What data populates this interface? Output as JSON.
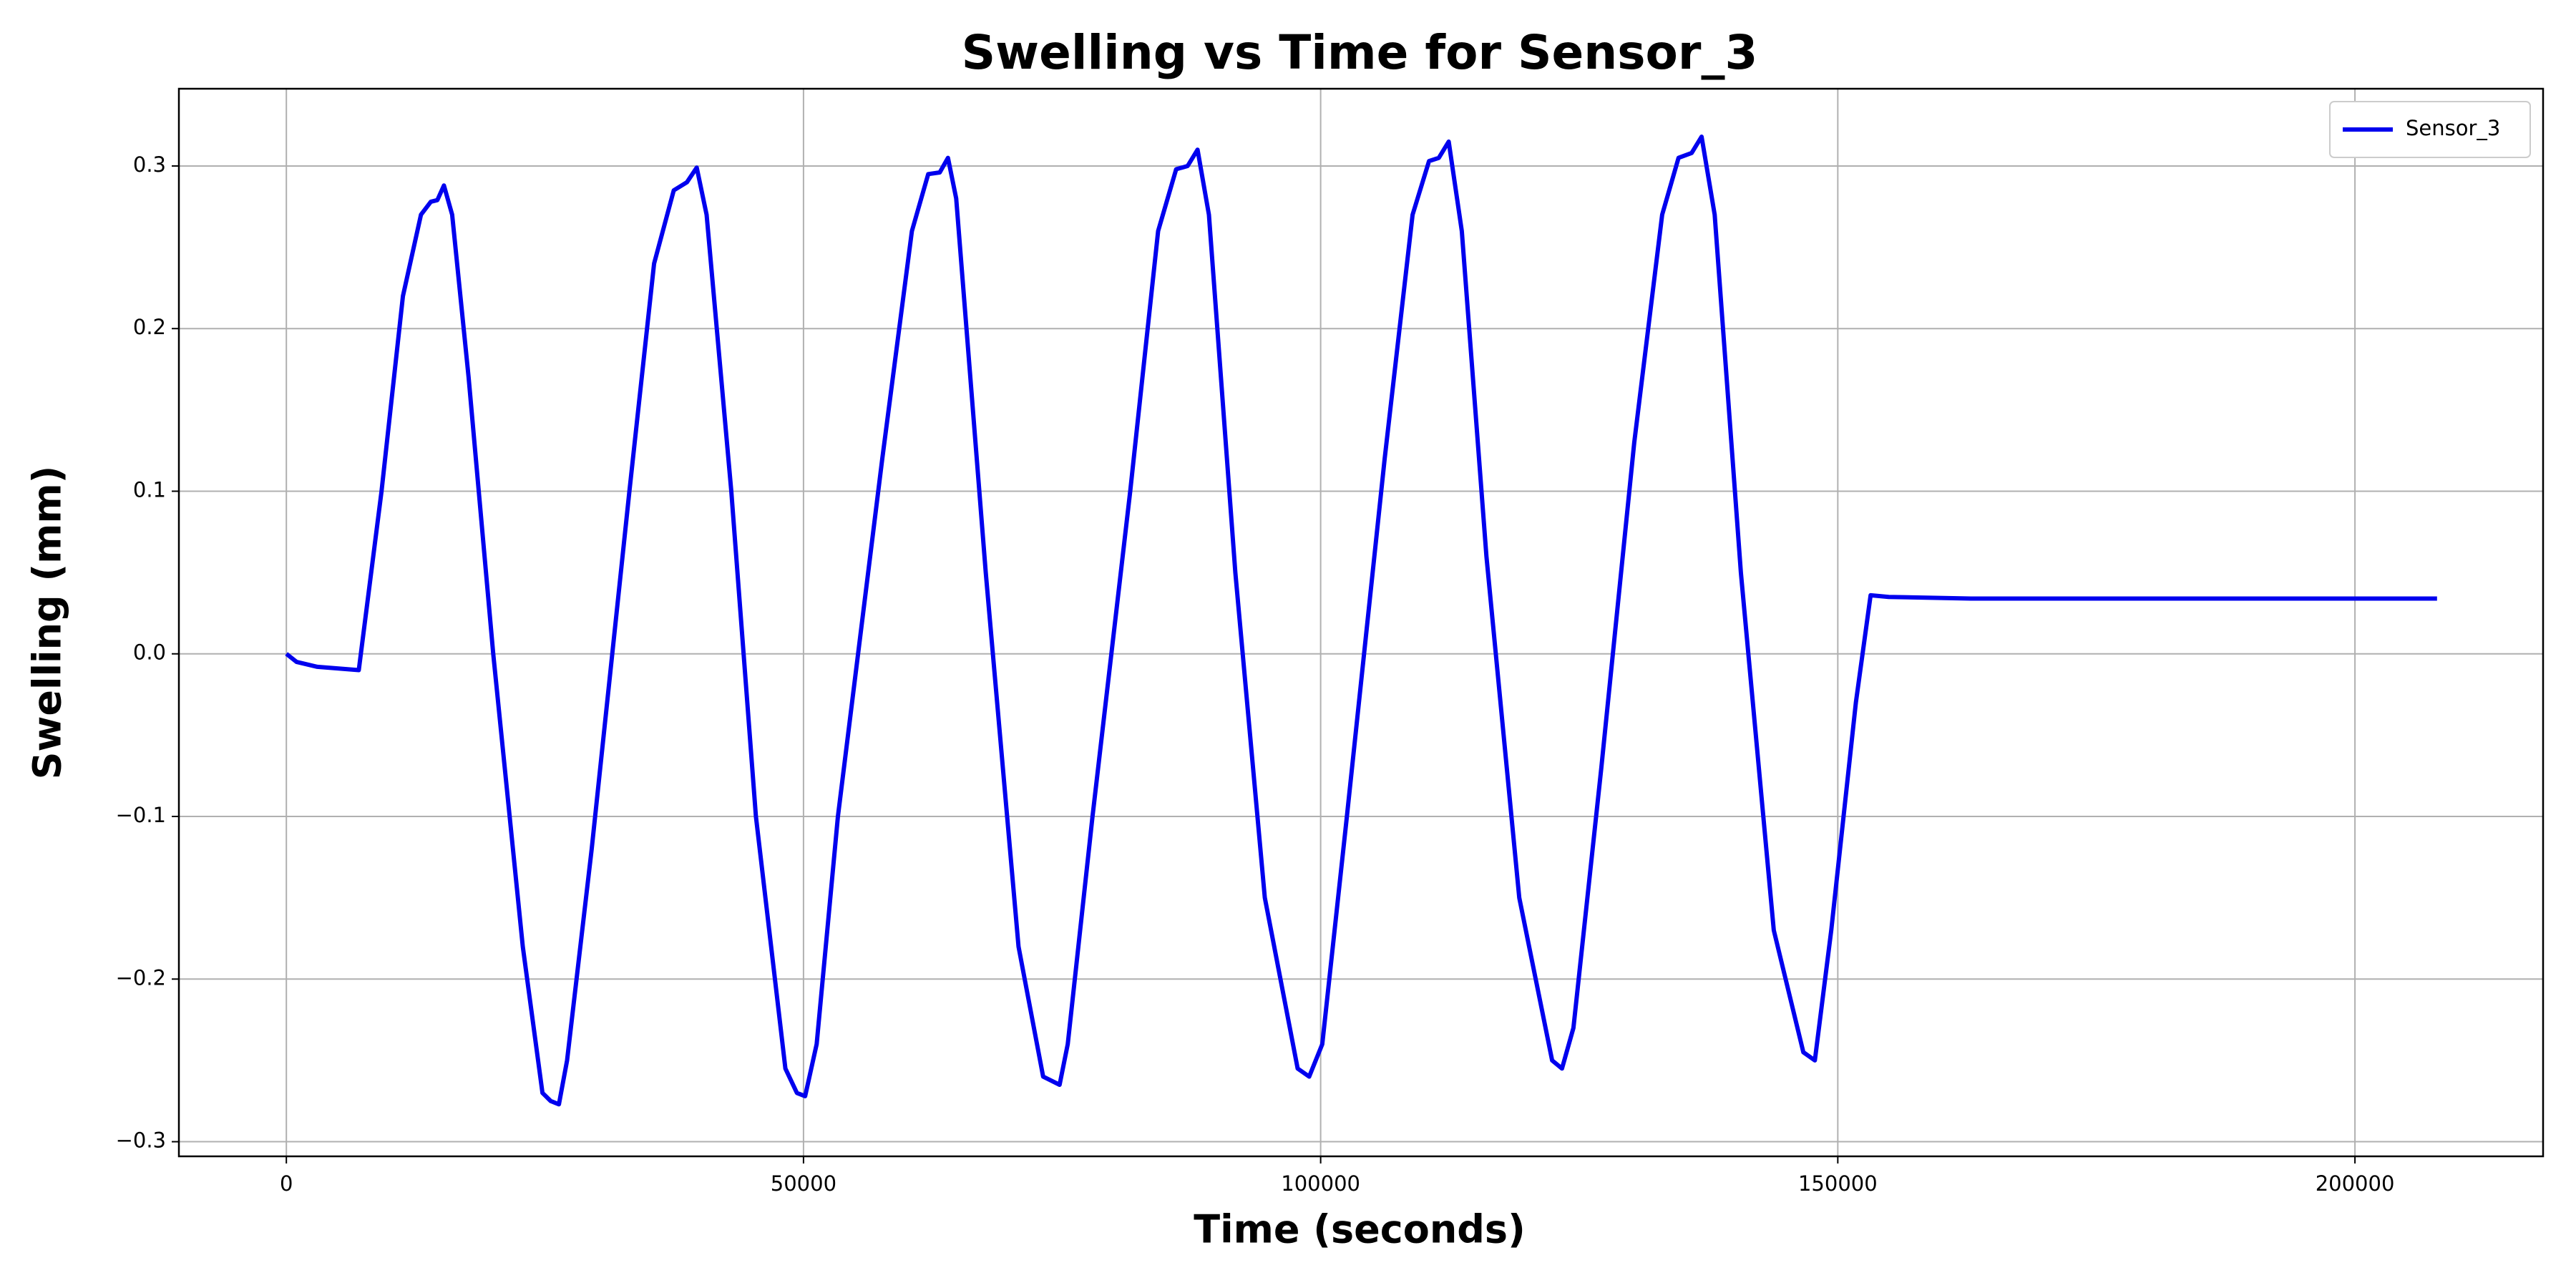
{
  "chart_data": {
    "type": "line",
    "title": "Swelling vs Time for Sensor_3",
    "x_label": "Time (seconds)",
    "y_label": "Swelling (mm)",
    "x": [
      0,
      1000,
      3000,
      7000,
      9206,
      11270,
      13016,
      13968,
      14600,
      15238,
      16030,
      17620,
      20000,
      22857,
      24760,
      25555,
      26350,
      27140,
      29520,
      33170,
      35555,
      37460,
      38730,
      39680,
      40635,
      43016,
      45400,
      48250,
      49365,
      50160,
      51270,
      53330,
      57620,
      60480,
      62060,
      63170,
      63970,
      64760,
      67620,
      70790,
      73170,
      74760,
      75550,
      77940,
      81590,
      84290,
      86030,
      87140,
      88100,
      89200,
      91750,
      94600,
      97780,
      98890,
      100160,
      102540,
      106190,
      108890,
      110480,
      111430,
      112380,
      113650,
      116030,
      119200,
      122380,
      123330,
      124440,
      127140,
      130320,
      133020,
      134600,
      135870,
      136830,
      138100,
      140630,
      143810,
      146670,
      147780,
      149365,
      151750,
      153170,
      154920,
      162860,
      178730,
      194600,
      207940
    ],
    "series": [
      {
        "name": "Sensor_3",
        "color": "#0000ee",
        "values": [
          0,
          -0.005,
          -0.008,
          -0.01,
          0.1,
          0.22,
          0.27,
          0.278,
          0.279,
          0.288,
          0.27,
          0.17,
          0.0,
          -0.18,
          -0.27,
          -0.275,
          -0.277,
          -0.25,
          -0.12,
          0.1,
          0.24,
          0.285,
          0.29,
          0.299,
          0.27,
          0.1,
          -0.1,
          -0.255,
          -0.27,
          -0.272,
          -0.24,
          -0.1,
          0.12,
          0.26,
          0.295,
          0.296,
          0.305,
          0.28,
          0.05,
          -0.18,
          -0.26,
          -0.265,
          -0.24,
          -0.1,
          0.1,
          0.26,
          0.298,
          0.3,
          0.31,
          0.27,
          0.05,
          -0.15,
          -0.255,
          -0.26,
          -0.24,
          -0.1,
          0.12,
          0.27,
          0.303,
          0.305,
          0.315,
          0.26,
          0.06,
          -0.15,
          -0.25,
          -0.255,
          -0.23,
          -0.07,
          0.13,
          0.27,
          0.305,
          0.308,
          0.318,
          0.27,
          0.05,
          -0.17,
          -0.245,
          -0.25,
          -0.17,
          -0.03,
          0.036,
          0.035,
          0.034,
          0.034,
          0.034,
          0.034
        ]
      }
    ],
    "xlim": [
      -10390,
      218190
    ],
    "xticks": [
      0,
      50000,
      100000,
      150000,
      200000
    ],
    "ylim": [
      -0.309,
      0.3475
    ],
    "yticks": [
      {
        "value": -0.3,
        "label": "−0.3"
      },
      {
        "value": -0.2,
        "label": "−0.2"
      },
      {
        "value": -0.1,
        "label": "−0.1"
      },
      {
        "value": 0,
        "label": "0.0"
      },
      0.1,
      0.2,
      0.3
    ],
    "grid": true,
    "legend": "upper right"
  }
}
